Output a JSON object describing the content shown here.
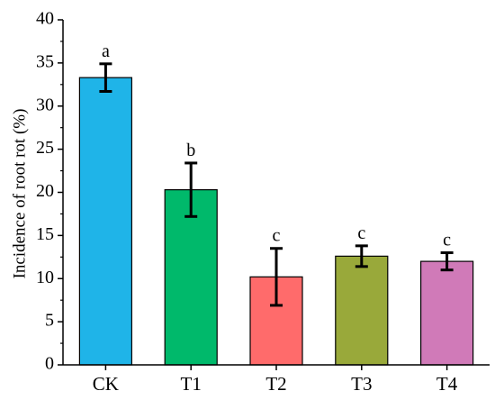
{
  "chart_data": {
    "type": "bar",
    "title": "",
    "xlabel": "",
    "ylabel": "Incidence of root rot (%)",
    "ylim": [
      0,
      40
    ],
    "yticks": [
      "0",
      "5",
      "10",
      "15",
      "20",
      "25",
      "30",
      "35",
      "40"
    ],
    "grid": false,
    "categories": [
      "CK",
      "T1",
      "T2",
      "T3",
      "T4"
    ],
    "values": [
      33.3,
      20.3,
      10.2,
      12.6,
      12.0
    ],
    "error": [
      1.6,
      3.1,
      3.3,
      1.2,
      1.0
    ],
    "significance": [
      "a",
      "b",
      "c",
      "c",
      "c"
    ],
    "colors": [
      "#1fb4e8",
      "#00b96b",
      "#ff6b6b",
      "#99a93a",
      "#d07ab8"
    ]
  }
}
